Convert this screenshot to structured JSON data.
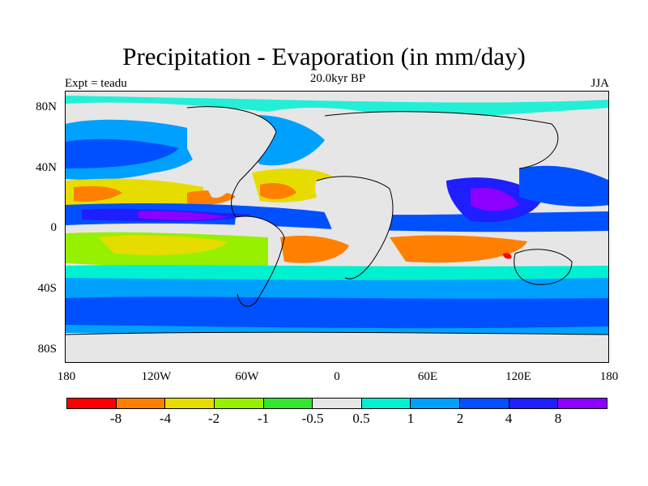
{
  "title": "Precipitation - Evaporation (in mm/day)",
  "subtitle": "20.0kyr BP",
  "experiment_label": "Expt = teadu",
  "season_label": "JJA",
  "lat_labels": [
    "80N",
    "40N",
    "0",
    "40S",
    "80S"
  ],
  "lon_labels": [
    "180",
    "120W",
    "60W",
    "0",
    "60E",
    "120E",
    "180"
  ],
  "colorbar": {
    "colors": [
      "#ff0000",
      "#ff8000",
      "#e6dc00",
      "#96f000",
      "#32e632",
      "#e6e6e6",
      "#00f0d2",
      "#00a0ff",
      "#0050ff",
      "#1e1eff",
      "#8c00ff"
    ],
    "labels": [
      "-8",
      "-4",
      "-2",
      "-1",
      "-0.5",
      "0.5",
      "1",
      "2",
      "4",
      "8"
    ]
  },
  "map_colors": {
    "neutral": "#e6e6e6",
    "strong_dry": "#ff0000",
    "dry": "#ff8000",
    "semi_dry": "#e6dc00",
    "mild_dry": "#96f000",
    "slight_dry": "#32e632",
    "slight_wet": "#00f0d2",
    "wet": "#00a0ff",
    "wetter": "#0050ff",
    "very_wet": "#1e1eff",
    "extreme_wet": "#8c00ff",
    "coast": "#000000"
  }
}
